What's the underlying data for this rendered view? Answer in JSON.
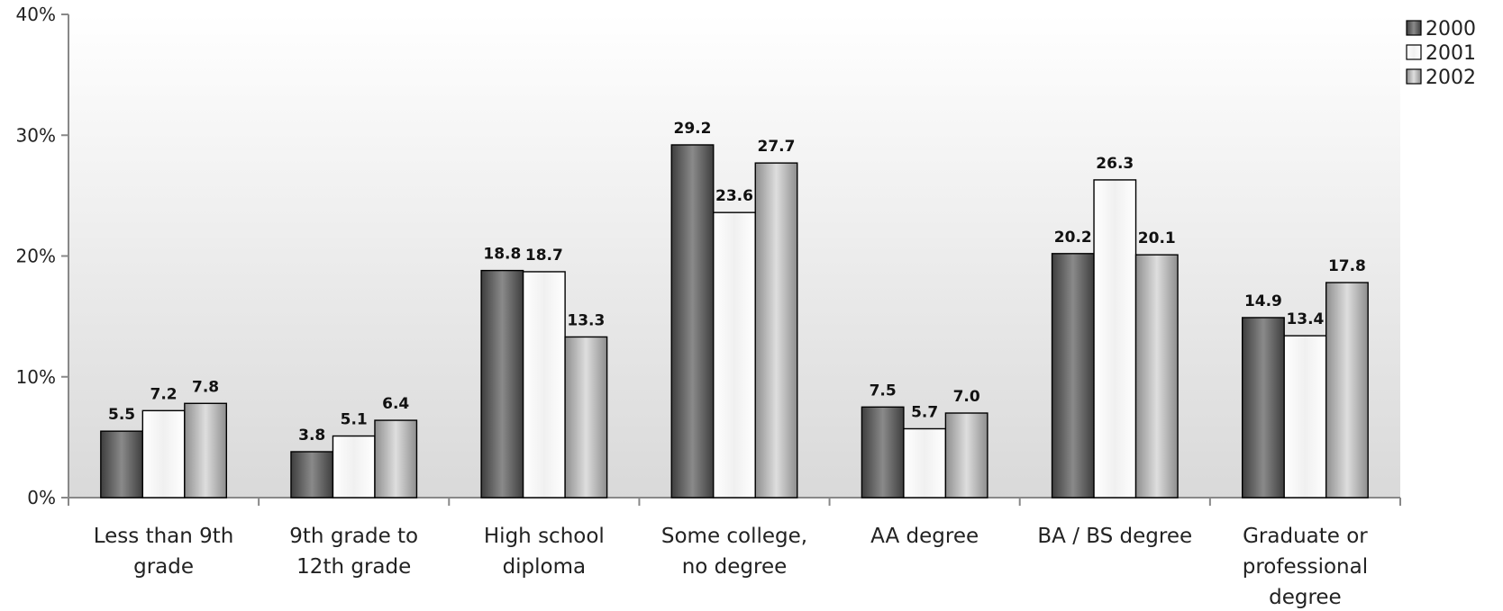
{
  "chart_data": {
    "type": "bar",
    "categories": [
      [
        "Less than 9th",
        "grade"
      ],
      [
        "9th grade to",
        "12th grade"
      ],
      [
        "High school",
        "diploma"
      ],
      [
        "Some college,",
        "no degree"
      ],
      [
        "AA degree"
      ],
      [
        "BA / BS degree"
      ],
      [
        "Graduate or",
        "professional",
        "degree"
      ]
    ],
    "series": [
      {
        "name": "2000",
        "values": [
          5.5,
          3.8,
          18.8,
          29.2,
          7.5,
          20.2,
          14.9
        ],
        "labels": [
          "5.5",
          "3.8",
          "18.8",
          "29.2",
          "7.5",
          "20.2",
          "14.9"
        ]
      },
      {
        "name": "2001",
        "values": [
          7.2,
          5.1,
          18.7,
          23.6,
          5.7,
          26.3,
          13.4
        ],
        "labels": [
          "7.2",
          "5.1",
          "18.7",
          "23.6",
          "5.7",
          "26.3",
          "13.4"
        ]
      },
      {
        "name": "2002",
        "values": [
          7.8,
          6.4,
          13.3,
          27.7,
          7.0,
          20.1,
          17.8
        ],
        "labels": [
          "7.8",
          "6.4",
          "13.3",
          "27.7",
          "7.0",
          "20.1",
          "17.8"
        ]
      }
    ],
    "yticks": [
      "0%",
      "10%",
      "20%",
      "30%",
      "40%"
    ],
    "ylim": [
      0,
      40
    ],
    "legend_position": "top-right",
    "grid": false,
    "colors": {
      "series_2000": [
        "#3e3e3e",
        "#8a8a8a",
        "#3e3e3e"
      ],
      "series_2001": [
        "#ffffff",
        "#f0f0f0",
        "#ffffff"
      ],
      "series_2002": [
        "#8e8e8e",
        "#dedede",
        "#8e8e8e"
      ],
      "plot_background_top": "#ffffff",
      "plot_background_bottom": "#d9d9d9",
      "axis": "#888888"
    }
  }
}
